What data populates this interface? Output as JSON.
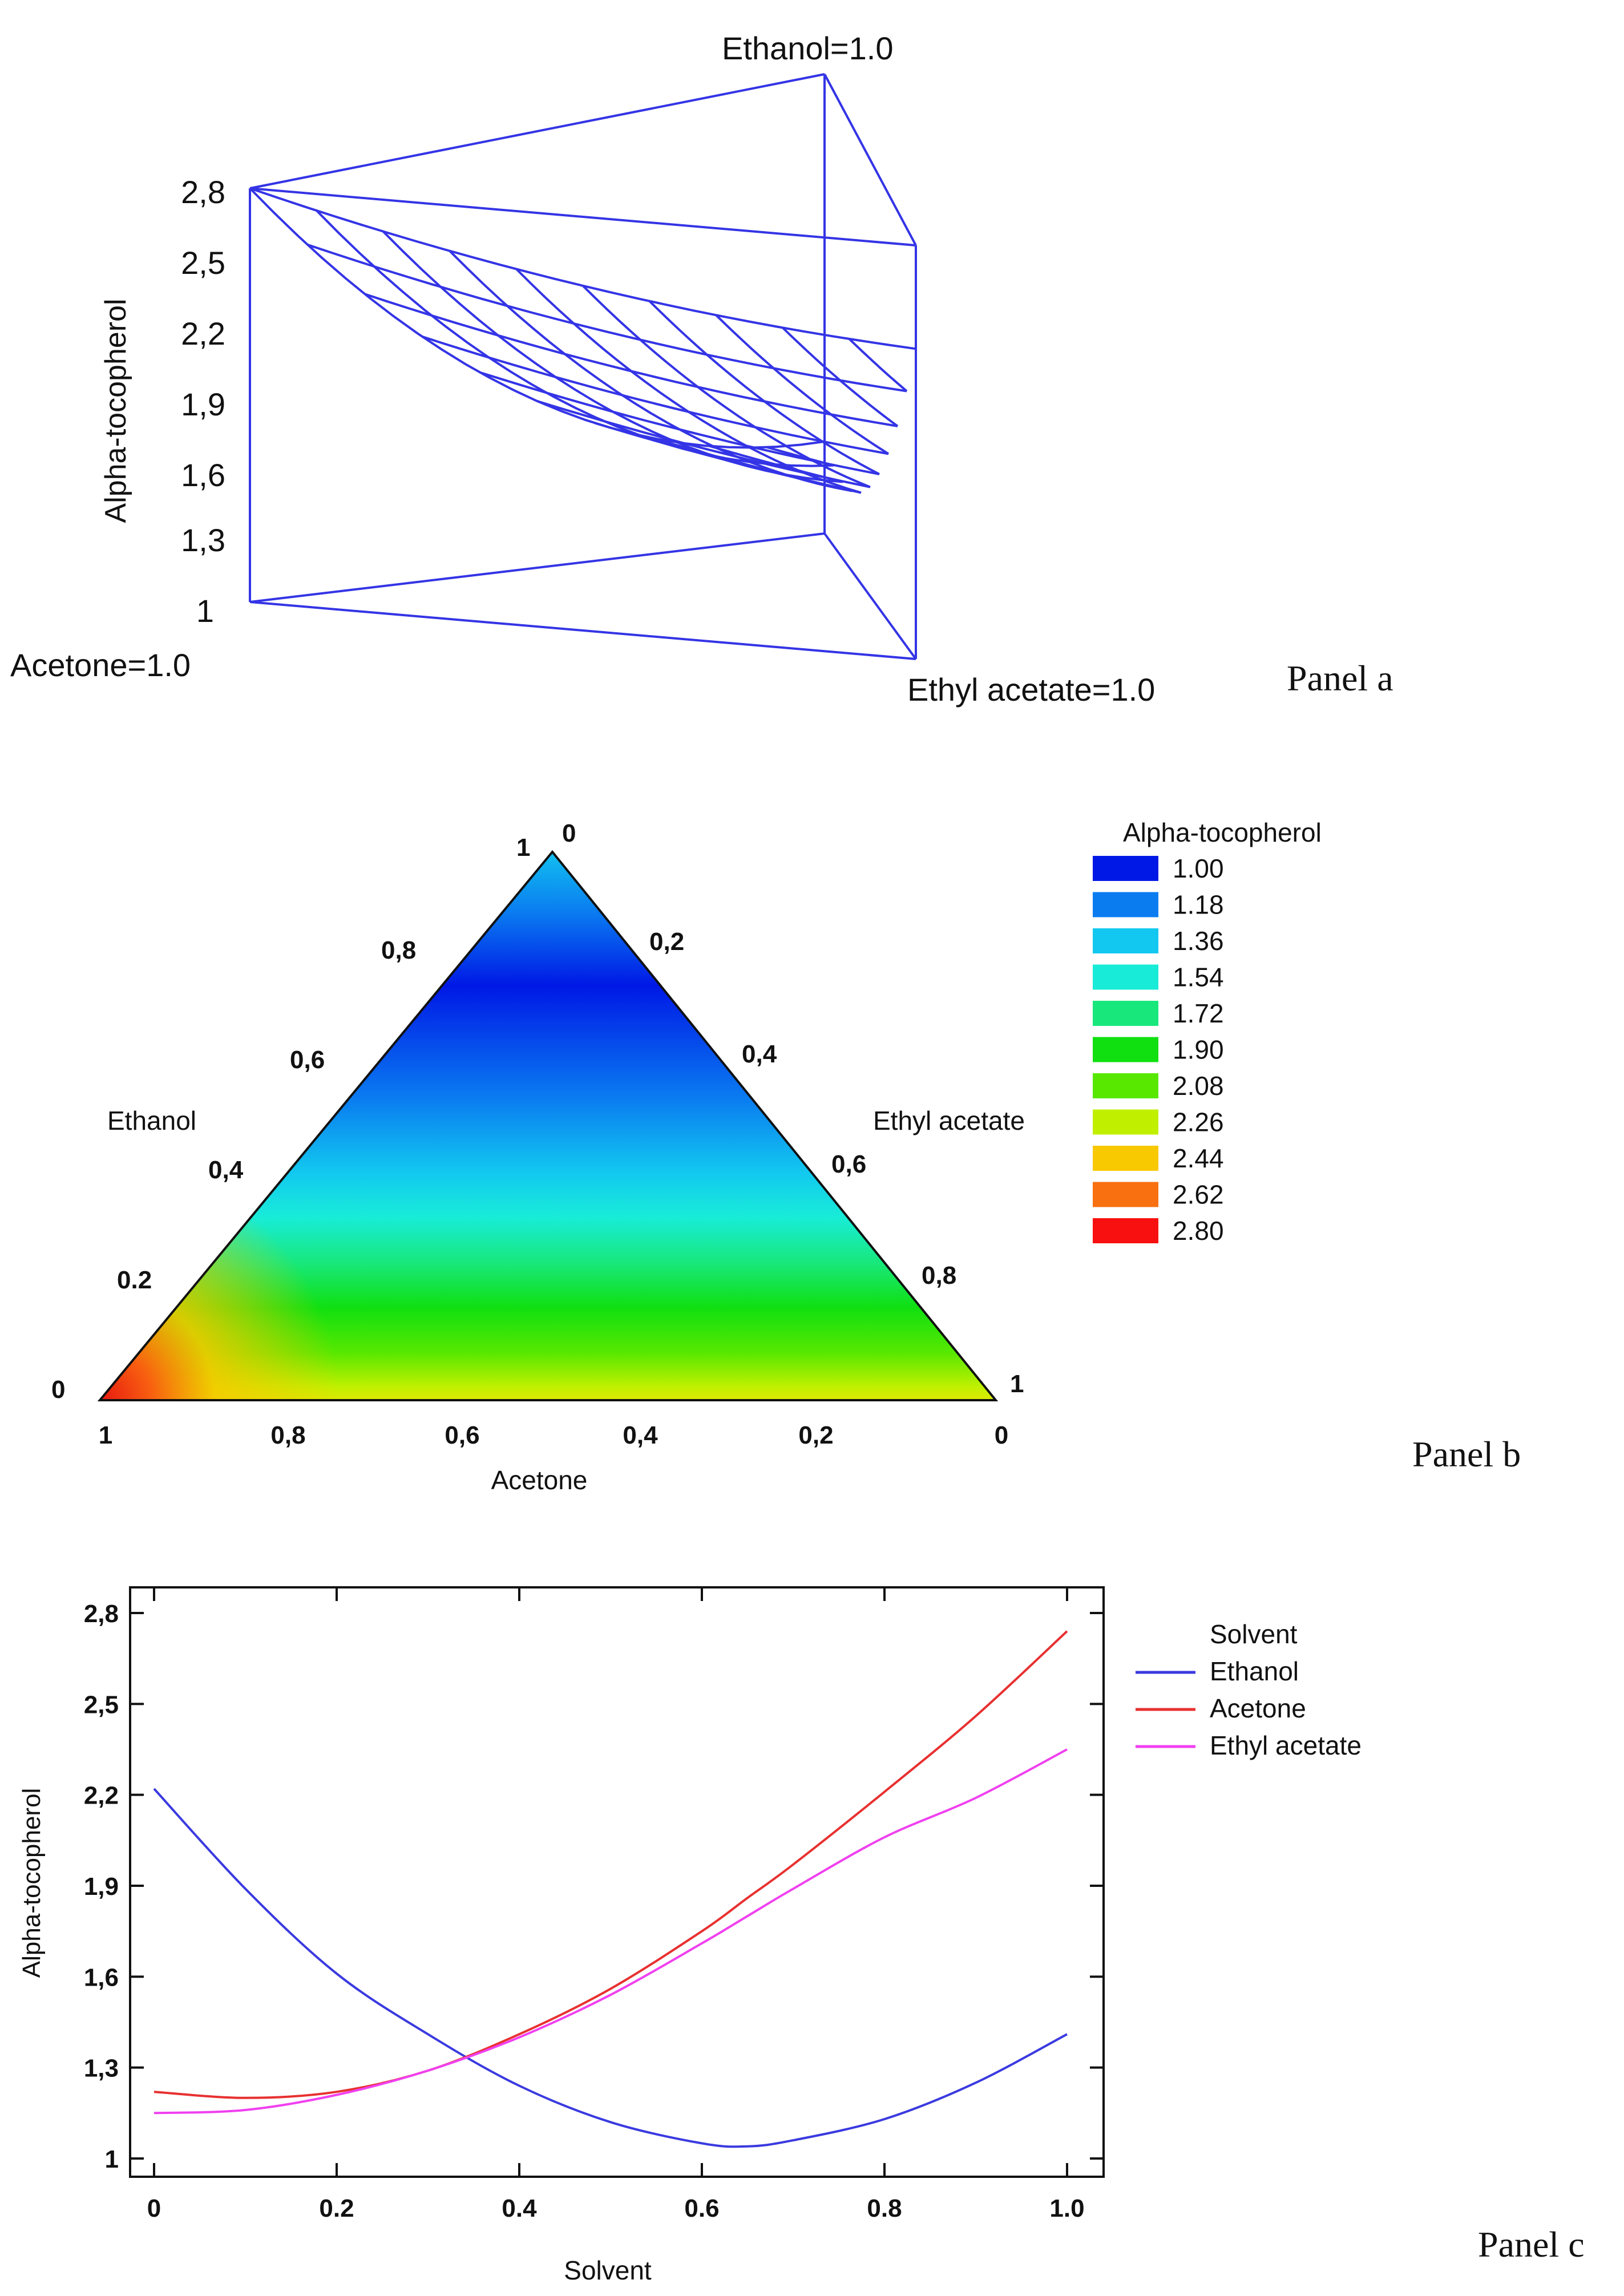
{
  "panel_a": {
    "panel_label": "Panel a",
    "ylabel": "Alpha-tocopherol",
    "vertex_labels": {
      "ethanol": "Ethanol=1.0",
      "acetone": "Acetone=1.0",
      "ethyl_acetate": "Ethyl acetate=1.0"
    },
    "zticks": [
      "1",
      "1,3",
      "1,6",
      "1,9",
      "2,2",
      "2,5",
      "2,8"
    ],
    "zlim": [
      1.0,
      2.8
    ],
    "line_color": "#3434e6"
  },
  "panel_b": {
    "panel_label": "Panel b",
    "axis_labels": {
      "ethanol": "Ethanol",
      "ethyl_acetate": "Ethyl acetate",
      "acetone": "Acetone"
    },
    "left_ticks": [
      "0",
      "0.2",
      "0,4",
      "0,6",
      "0,8",
      "1"
    ],
    "right_ticks": [
      "0",
      "0,2",
      "0,4",
      "0,6",
      "0,8",
      "1"
    ],
    "bottom_ticks": [
      "1",
      "0,8",
      "0,6",
      "0,4",
      "0,2",
      "0"
    ],
    "legend": {
      "title": "Alpha-tocopherol",
      "levels": [
        "1.00",
        "1.18",
        "1.36",
        "1.54",
        "1.72",
        "1.90",
        "2.08",
        "2.26",
        "2.44",
        "2.62",
        "2.80"
      ],
      "colors": [
        "#0018e6",
        "#0a7cf0",
        "#12c8f0",
        "#18ecd8",
        "#18e87c",
        "#10e010",
        "#58e800",
        "#c0f000",
        "#f8c800",
        "#f87010",
        "#f81010"
      ]
    }
  },
  "chart_data": {
    "type": "line",
    "title": "",
    "xlabel": "Solvent",
    "ylabel": "Alpha-tocopherol",
    "xlim": [
      0,
      1.0
    ],
    "ylim": [
      1.0,
      2.8
    ],
    "xticks": [
      "0",
      "0.2",
      "0.4",
      "0.6",
      "0.8",
      "1.0"
    ],
    "yticks": [
      "1",
      "1,3",
      "1,6",
      "1,9",
      "2,2",
      "2,5",
      "2,8"
    ],
    "x": [
      0,
      0.1,
      0.2,
      0.3,
      0.4,
      0.5,
      0.6,
      0.65,
      0.7,
      0.8,
      0.9,
      1.0
    ],
    "legend_title": "Solvent",
    "series": [
      {
        "name": "Ethanol",
        "color": "#3a3ae0",
        "values": [
          2.22,
          1.89,
          1.61,
          1.41,
          1.24,
          1.12,
          1.05,
          1.04,
          1.06,
          1.13,
          1.25,
          1.41
        ]
      },
      {
        "name": "Acetone",
        "color": "#e83030",
        "values": [
          1.22,
          1.2,
          1.22,
          1.29,
          1.41,
          1.56,
          1.75,
          1.86,
          1.97,
          2.21,
          2.46,
          2.74
        ]
      },
      {
        "name": "Ethyl acetate",
        "color": "#f040f0",
        "values": [
          1.15,
          1.16,
          1.21,
          1.29,
          1.4,
          1.54,
          1.71,
          1.8,
          1.89,
          2.06,
          2.19,
          2.35
        ]
      }
    ]
  }
}
